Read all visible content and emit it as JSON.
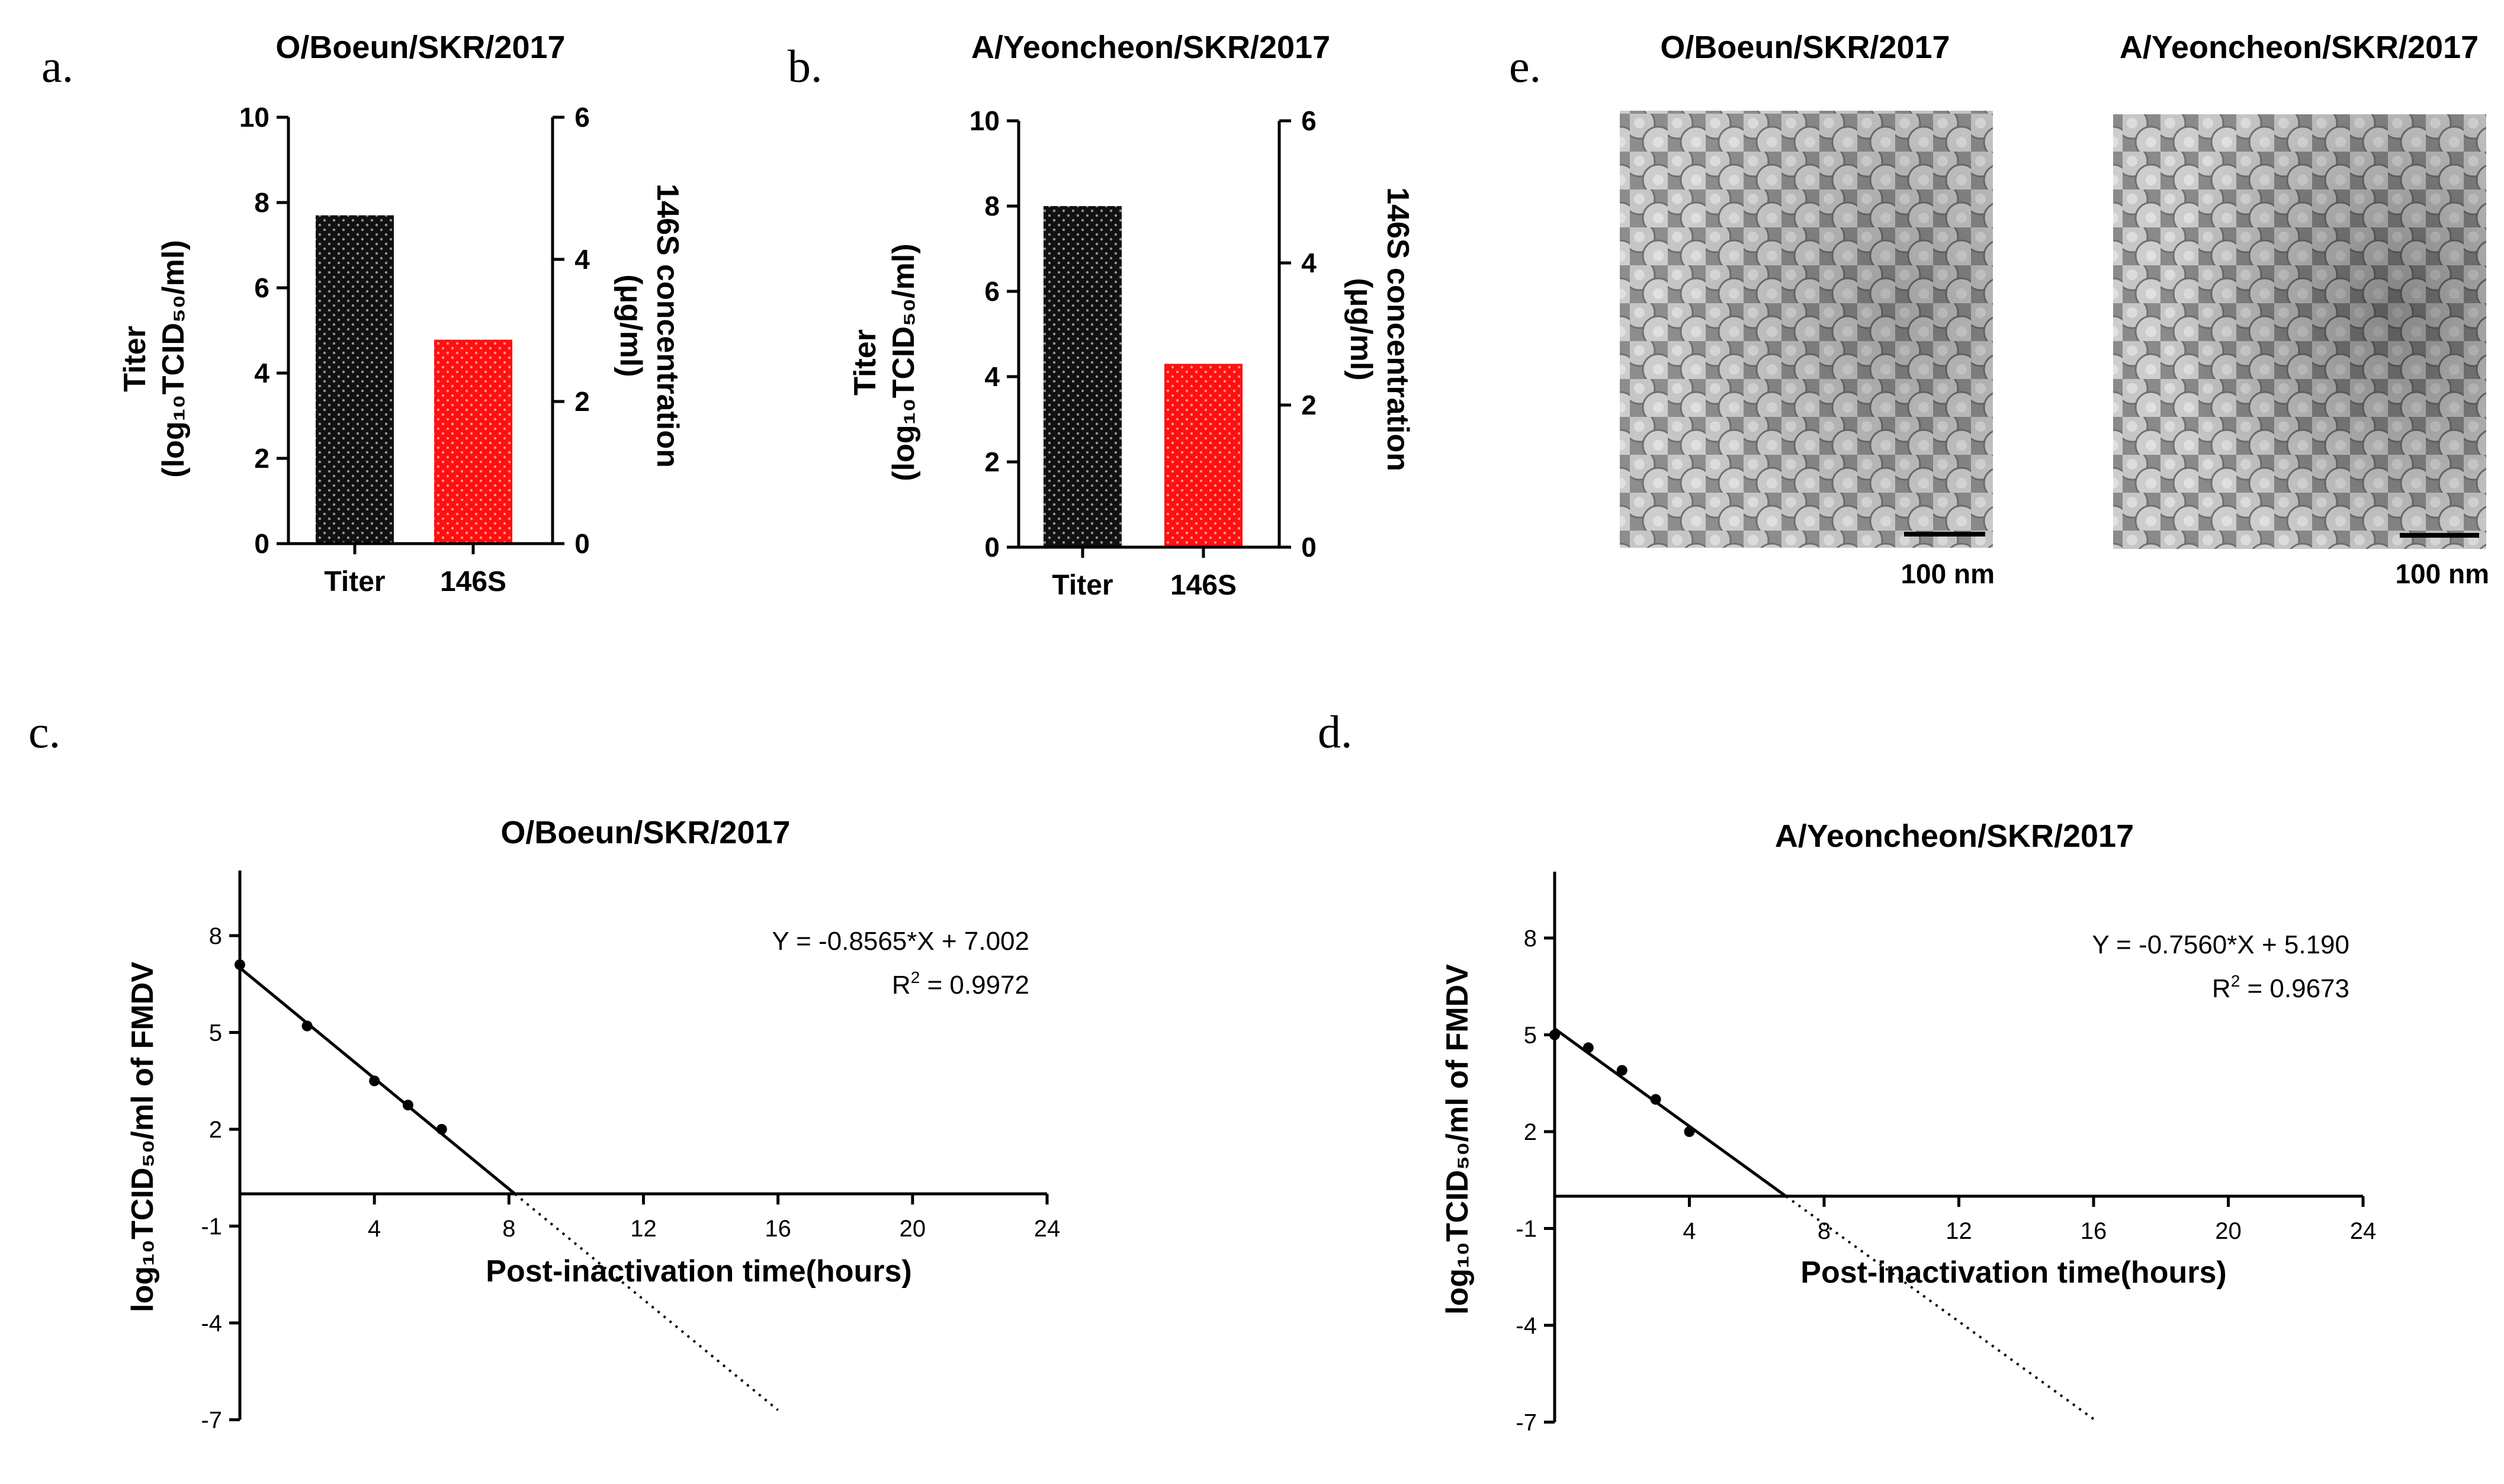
{
  "panel_labels": {
    "a": "a.",
    "b": "b.",
    "c": "c.",
    "d": "d.",
    "e": "e."
  },
  "colors": {
    "titer_bar": "#111111",
    "s146_bar": "#ff1010",
    "line": "#000000",
    "tem_bg": "#8d8d8d",
    "particle": "#c9c9c9"
  },
  "icons": {
    "stipple": "dotted-pattern",
    "scale_bar": "scale-bar"
  },
  "tem": {
    "left_title": "O/Boeun/SKR/2017",
    "right_title": "A/Yeoncheon/SKR/2017",
    "scale_label": "100 nm"
  },
  "chart_data": [
    {
      "id": "a",
      "type": "bar",
      "title": "O/Boeun/SKR/2017",
      "categories": [
        "Titer",
        "146S"
      ],
      "values": [
        7.7,
        2.87
      ],
      "value_axes": [
        "left",
        "right"
      ],
      "ylabel_line1": "Titer",
      "ylabel_line2": "(log₁₀TCID₅₀/ml)",
      "y2label_line1": "146S concentration",
      "y2label_line2": "(μg/ml)",
      "ylim": [
        0,
        10
      ],
      "y2lim": [
        0,
        6
      ],
      "yticks": [
        "0",
        "2",
        "4",
        "6",
        "8",
        "10"
      ],
      "y2ticks": [
        "0",
        "2",
        "4",
        "6"
      ]
    },
    {
      "id": "b",
      "type": "bar",
      "title": "A/Yeoncheon/SKR/2017",
      "categories": [
        "Titer",
        "146S"
      ],
      "values": [
        8.0,
        2.58
      ],
      "value_axes": [
        "left",
        "right"
      ],
      "ylabel_line1": "Titer",
      "ylabel_line2": "(log₁₀TCID₅₀/ml)",
      "y2label_line1": "146S concentration",
      "y2label_line2": "(μg/ml)",
      "ylim": [
        0,
        10
      ],
      "y2lim": [
        0,
        6
      ],
      "yticks": [
        "0",
        "2",
        "4",
        "6",
        "8",
        "10"
      ],
      "y2ticks": [
        "0",
        "2",
        "4",
        "6"
      ]
    },
    {
      "id": "c",
      "type": "scatter",
      "title": "O/Boeun/SKR/2017",
      "xlabel": "Post-inactivation time(hours)",
      "ylabel": "log₁₀TCID₅₀/ml of FMDV",
      "xlim": [
        0,
        24
      ],
      "ylim": [
        -7,
        10
      ],
      "xticks": [
        "4",
        "8",
        "12",
        "16",
        "20",
        "24"
      ],
      "yticks": [
        "-7",
        "-4",
        "-1",
        "2",
        "5",
        "8"
      ],
      "points": [
        [
          0,
          7.1
        ],
        [
          2,
          5.2
        ],
        [
          4,
          3.5
        ],
        [
          5,
          2.75
        ],
        [
          6,
          2.0
        ]
      ],
      "fit": {
        "slope": -0.8565,
        "intercept": 7.002,
        "solid_to": 8.18,
        "dotted_to": 16
      },
      "equation": "Y = -0.8565*X + 7.002",
      "r2_prefix": "R",
      "r2_exp": "2",
      "r2_value": " = 0.9972"
    },
    {
      "id": "d",
      "type": "scatter",
      "title": "A/Yeoncheon/SKR/2017",
      "xlabel": "Post-inactivation time(hours)",
      "ylabel": "log₁₀TCID₅₀/ml of FMDV",
      "xlim": [
        0,
        24
      ],
      "ylim": [
        -7,
        10
      ],
      "xticks": [
        "4",
        "8",
        "12",
        "16",
        "20",
        "24"
      ],
      "yticks": [
        "-7",
        "-4",
        "-1",
        "2",
        "5",
        "8"
      ],
      "points": [
        [
          0,
          5.0
        ],
        [
          1,
          4.6
        ],
        [
          2,
          3.9
        ],
        [
          3,
          3.0
        ],
        [
          4,
          2.0
        ]
      ],
      "fit": {
        "slope": -0.756,
        "intercept": 5.19,
        "solid_to": 6.87,
        "dotted_to": 16
      },
      "equation": "Y = -0.7560*X + 5.190",
      "r2_prefix": "R",
      "r2_exp": "2",
      "r2_value": " = 0.9673"
    }
  ]
}
